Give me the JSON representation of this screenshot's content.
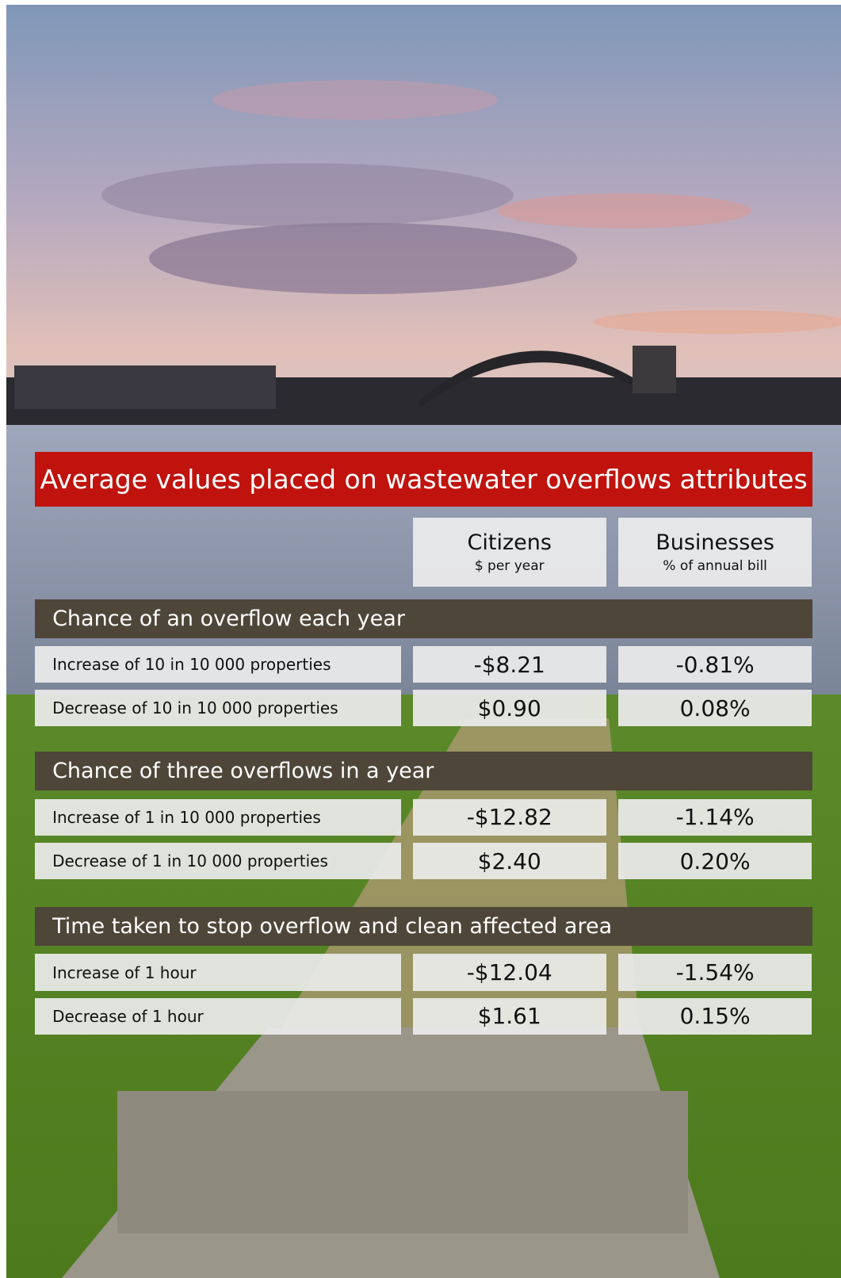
{
  "title": "Average values placed on wastewater overflows attributes",
  "columns": [
    {
      "name": "Citizens",
      "unit": "$ per year"
    },
    {
      "name": "Businesses",
      "unit": "% of annual bill"
    }
  ],
  "sections": [
    {
      "heading": "Chance of an overflow each year",
      "rows": [
        {
          "label": "Increase of 10 in 10 000 properties",
          "cells": [
            "-$8.21",
            "-0.81%"
          ]
        },
        {
          "label": "Decrease of 10 in 10 000 properties",
          "cells": [
            "$0.90",
            "0.08%"
          ]
        }
      ]
    },
    {
      "heading": "Chance of three overflows in a year",
      "rows": [
        {
          "label": "Increase of 1 in 10 000 properties",
          "cells": [
            "-$12.82",
            "-1.14%"
          ]
        },
        {
          "label": "Decrease of 1 in 10 000 properties",
          "cells": [
            "$2.40",
            "0.20%"
          ]
        }
      ]
    },
    {
      "heading": "Time taken to stop overflow and clean affected area",
      "rows": [
        {
          "label": "Increase of 1 hour",
          "cells": [
            "-$12.04",
            "-1.54%"
          ]
        },
        {
          "label": "Decrease of 1 hour",
          "cells": [
            "$1.61",
            "0.15%"
          ]
        }
      ]
    }
  ]
}
